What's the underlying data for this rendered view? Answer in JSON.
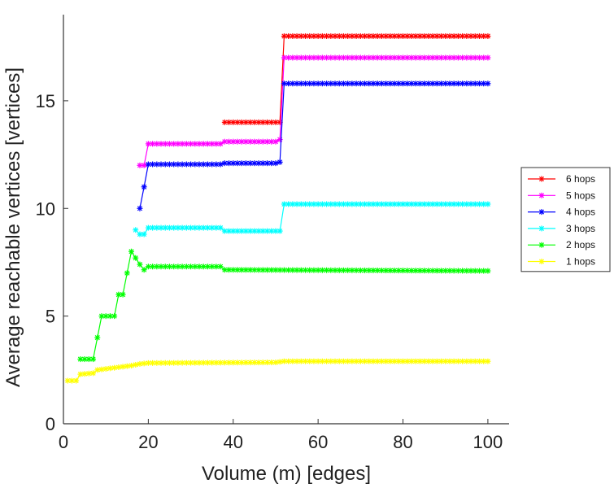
{
  "chart_data": {
    "type": "line",
    "xlabel": "Volume (m) [edges]",
    "ylabel": "Average reachable vertices [vertices]",
    "xlim": [
      0,
      105
    ],
    "ylim": [
      0,
      19
    ],
    "x_ticks": [
      0,
      20,
      40,
      60,
      80,
      100
    ],
    "y_ticks": [
      0,
      5,
      10,
      15
    ],
    "grid": false,
    "legend_position": "right",
    "series": [
      {
        "name": "6 hops",
        "color": "#ff0000",
        "points": [
          [
            38,
            14
          ],
          [
            50,
            14
          ],
          [
            51,
            14
          ],
          [
            52,
            18
          ],
          [
            100,
            18
          ]
        ]
      },
      {
        "name": "5 hops",
        "color": "#ff00ff",
        "points": [
          [
            18,
            12
          ],
          [
            19,
            12
          ],
          [
            20,
            13
          ],
          [
            37,
            13
          ],
          [
            38,
            13.1
          ],
          [
            50,
            13.1
          ],
          [
            51,
            13.2
          ],
          [
            52,
            17
          ],
          [
            100,
            17
          ]
        ]
      },
      {
        "name": "4 hops",
        "color": "#0000ff",
        "points": [
          [
            18,
            10
          ],
          [
            19,
            11
          ],
          [
            20,
            12.05
          ],
          [
            37,
            12.05
          ],
          [
            38,
            12.1
          ],
          [
            50,
            12.1
          ],
          [
            51,
            12.15
          ],
          [
            52,
            15.8
          ],
          [
            100,
            15.8
          ]
        ]
      },
      {
        "name": "3 hops",
        "color": "#00ffff",
        "points": [
          [
            17,
            9
          ],
          [
            18,
            8.8
          ],
          [
            19,
            8.8
          ],
          [
            20,
            9.1
          ],
          [
            37,
            9.1
          ],
          [
            38,
            8.95
          ],
          [
            50,
            8.95
          ],
          [
            51,
            8.95
          ],
          [
            52,
            10.2
          ],
          [
            100,
            10.2
          ]
        ]
      },
      {
        "name": "2 hops",
        "color": "#00ff00",
        "points": [
          [
            4,
            3
          ],
          [
            7,
            3
          ],
          [
            8,
            4
          ],
          [
            9,
            5
          ],
          [
            12,
            5
          ],
          [
            13,
            6
          ],
          [
            14,
            6
          ],
          [
            15,
            7
          ],
          [
            16,
            8
          ],
          [
            17,
            7.7
          ],
          [
            18,
            7.4
          ],
          [
            19,
            7.15
          ],
          [
            20,
            7.3
          ],
          [
            37,
            7.3
          ],
          [
            38,
            7.15
          ],
          [
            100,
            7.1
          ]
        ]
      },
      {
        "name": "1 hops",
        "color": "#ffff00",
        "points": [
          [
            1,
            2
          ],
          [
            3,
            2
          ],
          [
            4,
            2.3
          ],
          [
            7,
            2.35
          ],
          [
            8,
            2.5
          ],
          [
            10,
            2.55
          ],
          [
            12,
            2.6
          ],
          [
            14,
            2.65
          ],
          [
            16,
            2.7
          ],
          [
            18,
            2.78
          ],
          [
            20,
            2.82
          ],
          [
            50,
            2.85
          ],
          [
            52,
            2.9
          ],
          [
            100,
            2.9
          ]
        ]
      }
    ]
  }
}
